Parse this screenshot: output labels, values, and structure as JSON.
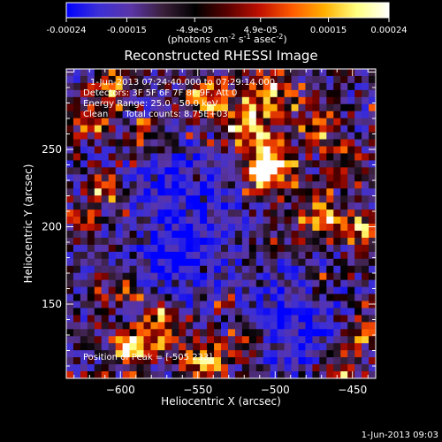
{
  "colorbar": {
    "ticks": [
      "-0.00024",
      "-0.00015",
      "-4.9e-05",
      "4.9e-05",
      "0.00015",
      "0.00024"
    ],
    "tick_values": [
      -0.00024,
      -0.00015,
      -4.9e-05,
      4.9e-05,
      0.00015,
      0.00024
    ],
    "range": [
      -0.00024,
      0.00024
    ],
    "unit_main": "(photons cm",
    "unit_exp1": "-2",
    "unit_mid": " s",
    "unit_exp2": "-1",
    "unit_tail": " asec",
    "unit_exp3": "-2",
    "unit_close": ")",
    "colors": [
      "#0000ff",
      "#3c2fd6",
      "#5a35a8",
      "#3a1f3a",
      "#000000",
      "#5a0000",
      "#c01000",
      "#ff5a00",
      "#ffb000",
      "#ffff80",
      "#ffffff"
    ]
  },
  "chart_data": {
    "type": "heatmap",
    "title": "Reconstructed RHESSI Image",
    "xlabel": "Heliocentric X (arcsec)",
    "ylabel": "Heliocentric Y (arcsec)",
    "xlim": [
      -635,
      -435
    ],
    "ylim": [
      102,
      302
    ],
    "xticks": [
      -600,
      -550,
      -500,
      -450
    ],
    "xtick_labels": [
      "−600",
      "−550",
      "−500",
      "−450"
    ],
    "yticks": [
      150,
      200,
      250
    ],
    "ytick_labels": [
      "150",
      "200",
      "250"
    ],
    "peak": {
      "x": -505,
      "y": 233
    },
    "info_lines": [
      "1-Jun-2013 07:24:40.000 to 07:29:14.000",
      "Detectors: 3F 5F 6F 7F 8F 9F, Att 0",
      "Energy Range: 25.0 - 50.0 keV",
      "Clean      Total counts: 8.75E+03"
    ],
    "peak_label": "Position of Peak = [-505 233]"
  },
  "footer": {
    "timestamp": "1-Jun-2013 09:03"
  }
}
